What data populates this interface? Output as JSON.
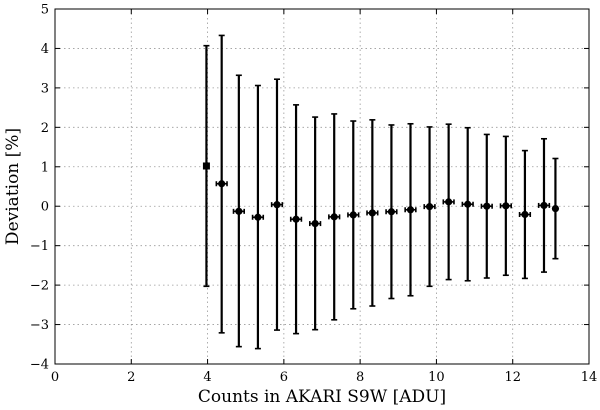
{
  "chart_data": {
    "type": "scatter",
    "title": "",
    "xlabel": "Counts in AKARI S9W [ADU]",
    "ylabel": "Deviation [%]",
    "xlim": [
      0,
      14
    ],
    "ylim": [
      -4,
      5
    ],
    "xticks": [
      "0",
      "2",
      "4",
      "6",
      "8",
      "10",
      "12",
      "14"
    ],
    "yticks": [
      "−4",
      "−3",
      "−2",
      "−1",
      "0",
      "1",
      "2",
      "3",
      "4",
      "5"
    ],
    "grid": true,
    "series": [
      {
        "marker_first": "square",
        "marker_rest": "circle",
        "points": [
          {
            "x": 3.97,
            "y": 1.02,
            "ylow": -2.03,
            "yhigh": 4.07,
            "xerr": 0.0
          },
          {
            "x": 4.37,
            "y": 0.57,
            "ylow": -3.21,
            "yhigh": 4.33,
            "xerr": 0.14
          },
          {
            "x": 4.82,
            "y": -0.13,
            "ylow": -3.56,
            "yhigh": 3.32,
            "xerr": 0.14
          },
          {
            "x": 5.32,
            "y": -0.28,
            "ylow": -3.61,
            "yhigh": 3.06,
            "xerr": 0.14
          },
          {
            "x": 5.82,
            "y": 0.04,
            "ylow": -3.14,
            "yhigh": 3.22,
            "xerr": 0.14
          },
          {
            "x": 6.32,
            "y": -0.33,
            "ylow": -3.23,
            "yhigh": 2.57,
            "xerr": 0.14
          },
          {
            "x": 6.82,
            "y": -0.44,
            "ylow": -3.13,
            "yhigh": 2.26,
            "xerr": 0.14
          },
          {
            "x": 7.32,
            "y": -0.27,
            "ylow": -2.88,
            "yhigh": 2.34,
            "xerr": 0.14
          },
          {
            "x": 7.82,
            "y": -0.22,
            "ylow": -2.6,
            "yhigh": 2.16,
            "xerr": 0.14
          },
          {
            "x": 8.32,
            "y": -0.17,
            "ylow": -2.53,
            "yhigh": 2.19,
            "xerr": 0.14
          },
          {
            "x": 8.82,
            "y": -0.14,
            "ylow": -2.34,
            "yhigh": 2.06,
            "xerr": 0.14
          },
          {
            "x": 9.32,
            "y": -0.09,
            "ylow": -2.27,
            "yhigh": 2.09,
            "xerr": 0.14
          },
          {
            "x": 9.82,
            "y": -0.01,
            "ylow": -2.03,
            "yhigh": 2.01,
            "xerr": 0.14
          },
          {
            "x": 10.32,
            "y": 0.11,
            "ylow": -1.86,
            "yhigh": 2.08,
            "xerr": 0.14
          },
          {
            "x": 10.82,
            "y": 0.05,
            "ylow": -1.89,
            "yhigh": 1.99,
            "xerr": 0.14
          },
          {
            "x": 11.32,
            "y": 0.0,
            "ylow": -1.82,
            "yhigh": 1.82,
            "xerr": 0.14
          },
          {
            "x": 11.82,
            "y": 0.01,
            "ylow": -1.75,
            "yhigh": 1.77,
            "xerr": 0.14
          },
          {
            "x": 12.32,
            "y": -0.21,
            "ylow": -1.83,
            "yhigh": 1.41,
            "xerr": 0.14
          },
          {
            "x": 12.82,
            "y": 0.02,
            "ylow": -1.67,
            "yhigh": 1.71,
            "xerr": 0.14
          },
          {
            "x": 13.12,
            "y": -0.06,
            "ylow": -1.33,
            "yhigh": 1.21,
            "xerr": 0.0
          }
        ]
      }
    ]
  }
}
